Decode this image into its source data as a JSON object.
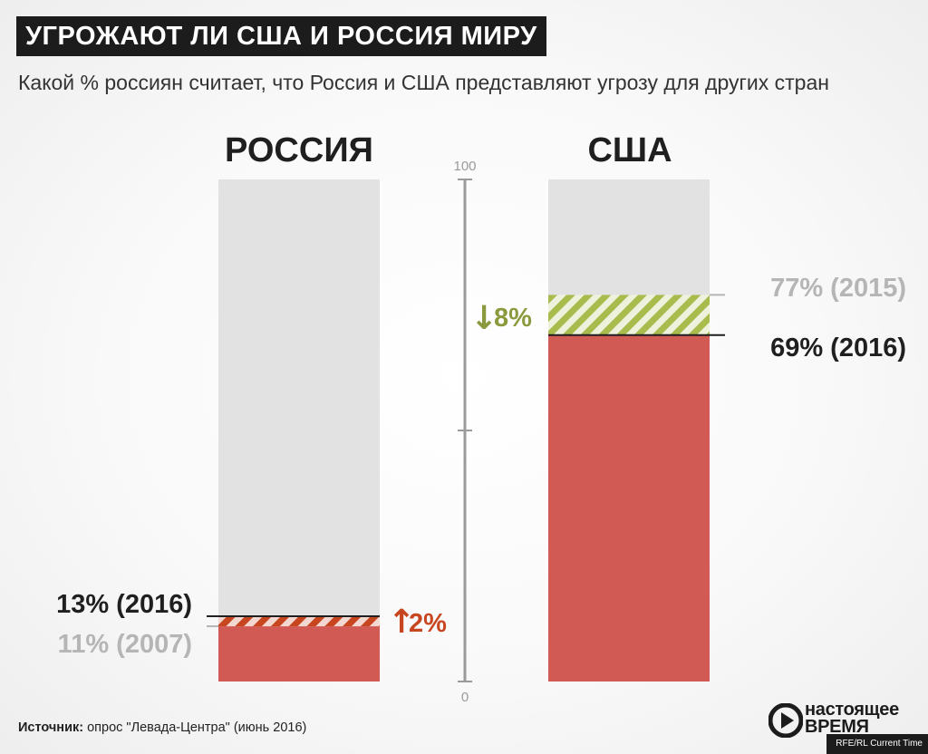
{
  "title": "УГРОЖАЮТ ЛИ США И РОССИЯ  МИРУ",
  "subtitle": "Какой % россиян считает, что Россия и США  представляют угрозу для других стран",
  "source_label": "Источник:",
  "source_text": " опрос \"Левада-Центра\" (июнь 2016)",
  "logo": {
    "line1": "настоящее",
    "line2": "время"
  },
  "credit": "RFE/RL Current Time",
  "colors": {
    "bar_bg": "#e2e2e2",
    "value": "#d25a55",
    "increase": "#c8461f",
    "decrease": "#8a9a3c",
    "hatch_decrease": "#a8bc4e",
    "axis": "#9a9a9a",
    "label_dark": "#1f1f1f",
    "label_grey": "#b5b5b5"
  },
  "chart_data": {
    "type": "bar",
    "title": "УГРОЖАЮТ ЛИ США И РОССИЯ  МИРУ",
    "subtitle": "Какой % россиян считает, что Россия и США  представляют угрозу для других стран",
    "categories": [
      "РОССИЯ",
      "США"
    ],
    "ylim": [
      0,
      100
    ],
    "yticks": [
      "0",
      "100"
    ],
    "series": [
      {
        "name": "",
        "values": [
          11,
          77
        ],
        "labels": [
          "11% (2007)",
          "77% (2015)"
        ]
      },
      {
        "name": "",
        "values": [
          13,
          69
        ],
        "labels": [
          "13% (2016)",
          "69% (2016)"
        ]
      }
    ],
    "changes": [
      {
        "arrow": "↑",
        "text": "2%",
        "direction": "up"
      },
      {
        "arrow": "↓",
        "text": "8%",
        "direction": "down"
      }
    ]
  }
}
